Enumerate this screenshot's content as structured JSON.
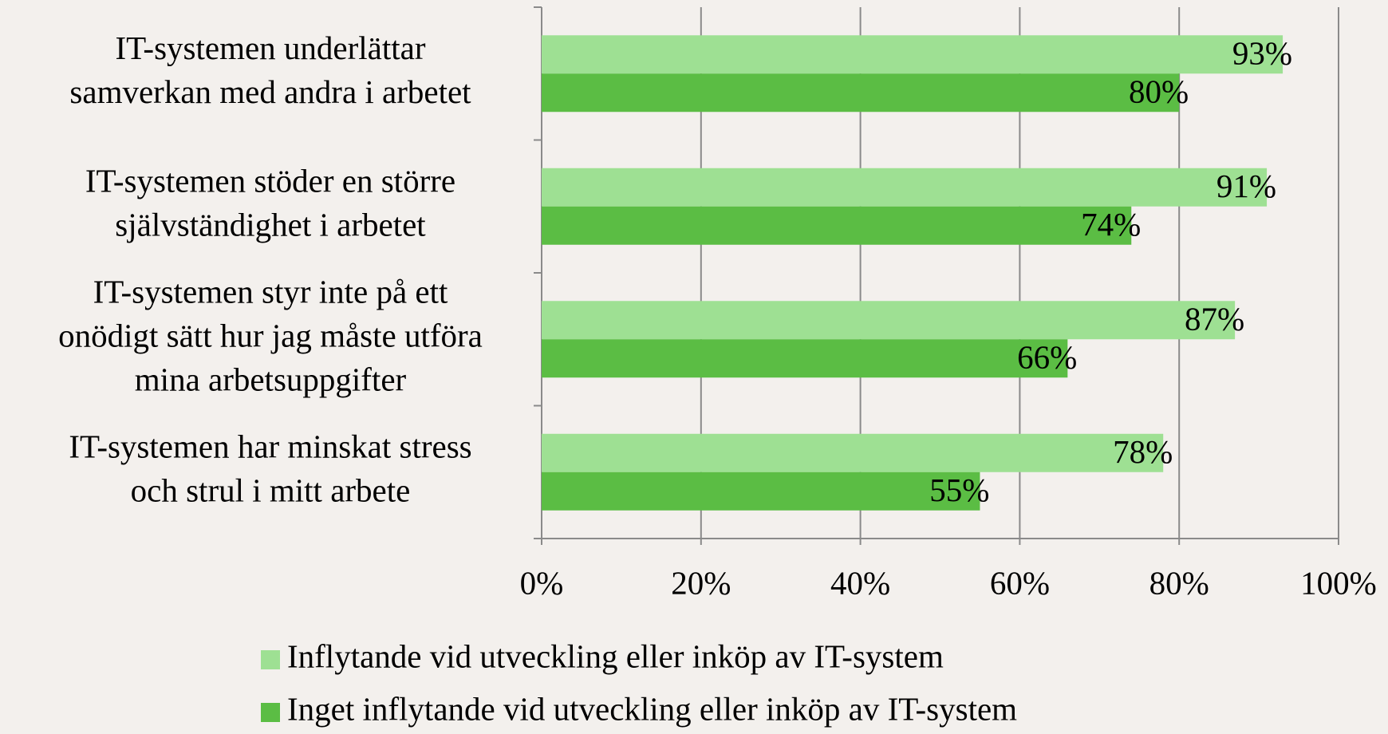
{
  "chart_data": {
    "type": "bar",
    "orientation": "horizontal",
    "categories": [
      "IT-systemen underlättar\nsamverkan med andra i arbetet",
      "IT-systemen stöder en större\nsjälvständighet i arbetet",
      "IT-systemen styr inte på ett\nonödigt sätt hur jag måste utföra\nmina arbetsuppgifter",
      "IT-systemen har minskat stress\noch strul i mitt arbete"
    ],
    "series": [
      {
        "name": "Inflytande vid utveckling eller inköp av IT-system",
        "color": "#9ee093",
        "values": [
          93,
          91,
          87,
          78
        ],
        "value_labels": [
          "93%",
          "91%",
          "87%",
          "78%"
        ]
      },
      {
        "name": "Inget inflytande vid utveckling eller inköp av IT-system",
        "color": "#5bbd44",
        "values": [
          80,
          74,
          66,
          55
        ],
        "value_labels": [
          "80%",
          "74%",
          "66%",
          "55%"
        ]
      }
    ],
    "xlim": [
      0,
      100
    ],
    "xticks": [
      {
        "value": 0,
        "label": "0%"
      },
      {
        "value": 20,
        "label": "20%"
      },
      {
        "value": 40,
        "label": "40%"
      },
      {
        "value": 60,
        "label": "60%"
      },
      {
        "value": 80,
        "label": "80%"
      },
      {
        "value": 100,
        "label": "100%"
      }
    ],
    "grid": true,
    "legend": "bottom"
  }
}
